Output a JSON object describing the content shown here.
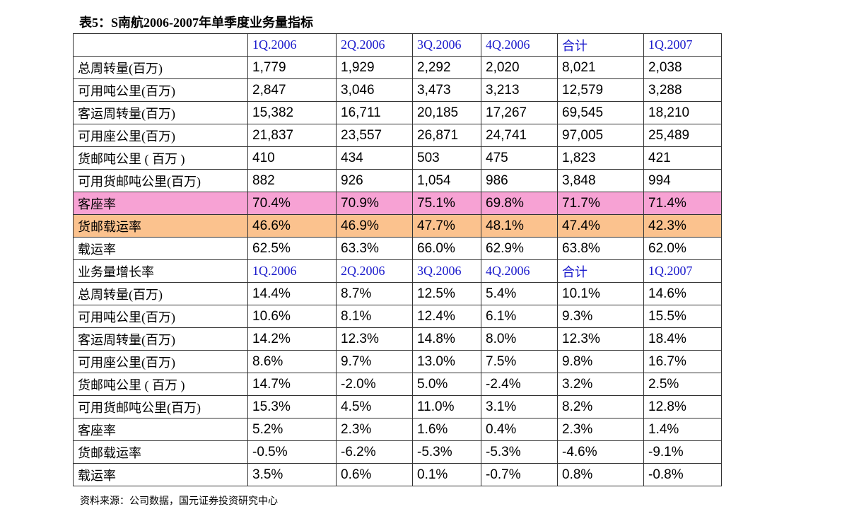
{
  "title": "表5：S南航2006-2007年单季度业务量指标",
  "table": {
    "header": [
      "1Q.2006",
      "2Q.2006",
      "3Q.2006",
      "4Q.2006",
      "合计",
      "1Q.2007"
    ],
    "rows": [
      [
        "总周转量(百万)",
        "1,779",
        "1,929",
        "2,292",
        "2,020",
        "8,021",
        "2,038"
      ],
      [
        "可用吨公里(百万)",
        "2,847",
        "3,046",
        "3,473",
        "3,213",
        "12,579",
        "3,288"
      ],
      [
        "客运周转量(百万)",
        "15,382",
        "16,711",
        "20,185",
        "17,267",
        "69,545",
        "18,210"
      ],
      [
        "可用座公里(百万)",
        "21,837",
        "23,557",
        "26,871",
        "24,741",
        "97,005",
        "25,489"
      ],
      [
        "货邮吨公里 ( 百万 )",
        "410",
        "434",
        "503",
        "475",
        "1,823",
        "421"
      ],
      [
        "可用货邮吨公里(百万)",
        "882",
        "926",
        "1,054",
        "986",
        "3,848",
        "994"
      ],
      [
        "客座率",
        "70.4%",
        "70.9%",
        "75.1%",
        "69.8%",
        "71.7%",
        "71.4%"
      ],
      [
        "货邮载运率",
        "46.6%",
        "46.9%",
        "47.7%",
        "48.1%",
        "47.4%",
        "42.3%"
      ],
      [
        "载运率",
        "62.5%",
        "63.3%",
        "66.0%",
        "62.9%",
        "63.8%",
        "62.0%"
      ]
    ],
    "header2": [
      "业务量增长率",
      "1Q.2006",
      "2Q.2006",
      "3Q.2006",
      "4Q.2006",
      "合计",
      "1Q.2007"
    ],
    "rows2": [
      [
        "总周转量(百万)",
        "14.4%",
        "8.7%",
        "12.5%",
        "5.4%",
        "10.1%",
        "14.6%"
      ],
      [
        "可用吨公里(百万)",
        "10.6%",
        "8.1%",
        "12.4%",
        "6.1%",
        "9.3%",
        "15.5%"
      ],
      [
        "客运周转量(百万)",
        "14.2%",
        "12.3%",
        "14.8%",
        "8.0%",
        "12.3%",
        "18.4%"
      ],
      [
        "可用座公里(百万)",
        "8.6%",
        "9.7%",
        "13.0%",
        "7.5%",
        "9.8%",
        "16.7%"
      ],
      [
        "货邮吨公里 ( 百万 )",
        "14.7%",
        "-2.0%",
        "5.0%",
        "-2.4%",
        "3.2%",
        "2.5%"
      ],
      [
        "可用货邮吨公里(百万)",
        "15.3%",
        "4.5%",
        "11.0%",
        "3.1%",
        "8.2%",
        "12.8%"
      ],
      [
        "客座率",
        "5.2%",
        "2.3%",
        "1.6%",
        "0.4%",
        "2.3%",
        "1.4%"
      ],
      [
        "货邮载运率",
        "-0.5%",
        "-6.2%",
        "-5.3%",
        "-5.3%",
        "-4.6%",
        "-9.1%"
      ],
      [
        "载运率",
        "3.5%",
        "0.6%",
        "0.1%",
        "-0.7%",
        "0.8%",
        "-0.8%"
      ]
    ]
  },
  "source": "资料来源：公司数据，国元证券投资研究中心"
}
